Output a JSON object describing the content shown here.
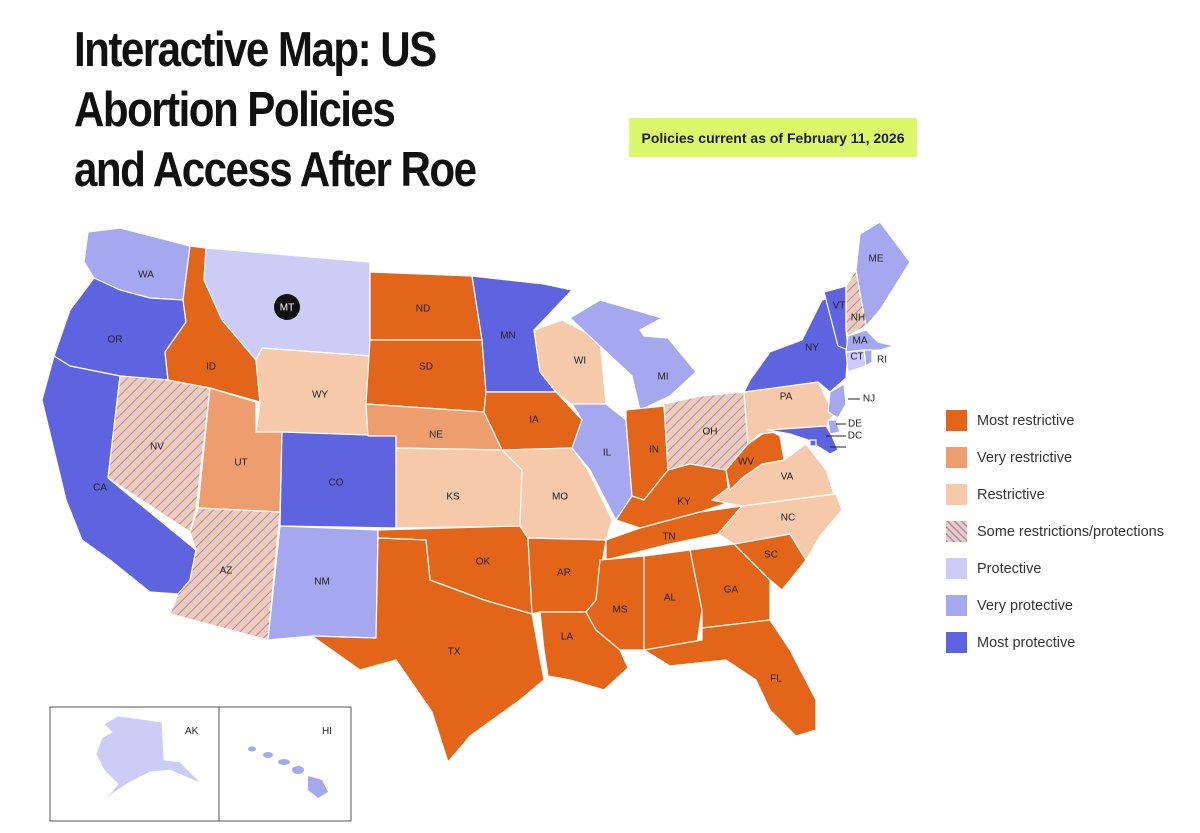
{
  "title": {
    "line1": "Interactive Map: US",
    "line2": "Abortion Policies",
    "line3": "and Access After Roe"
  },
  "date_badge": "Policies current as of February 11, 2026",
  "colors": {
    "most_restrictive": "#e3651a",
    "very_restrictive": "#ee9e6e",
    "restrictive": "#f5c9a9",
    "some_restrictions_protections": "#f4cbb1",
    "hatch_line": "#8f8ee6",
    "protective": "#ccccf7",
    "very_protective": "#a5a8ee",
    "most_protective": "#5e64e0"
  },
  "legend": [
    {
      "key": "most_restrictive",
      "label": "Most restrictive"
    },
    {
      "key": "very_restrictive",
      "label": "Very restrictive"
    },
    {
      "key": "restrictive",
      "label": "Restrictive"
    },
    {
      "key": "some_restrictions_protections",
      "label": "Some restrictions/protections"
    },
    {
      "key": "protective",
      "label": "Protective"
    },
    {
      "key": "very_protective",
      "label": "Very protective"
    },
    {
      "key": "most_protective",
      "label": "Most protective"
    }
  ],
  "states": {
    "WA": {
      "label": "WA",
      "category": "very_protective"
    },
    "OR": {
      "label": "OR",
      "category": "most_protective"
    },
    "CA": {
      "label": "CA",
      "category": "most_protective"
    },
    "NV": {
      "label": "NV",
      "category": "some_restrictions_protections"
    },
    "ID": {
      "label": "ID",
      "category": "most_restrictive"
    },
    "MT": {
      "label": "MT",
      "category": "protective"
    },
    "WY": {
      "label": "WY",
      "category": "restrictive"
    },
    "UT": {
      "label": "UT",
      "category": "very_restrictive"
    },
    "AZ": {
      "label": "AZ",
      "category": "some_restrictions_protections"
    },
    "CO": {
      "label": "CO",
      "category": "most_protective"
    },
    "NM": {
      "label": "NM",
      "category": "very_protective"
    },
    "ND": {
      "label": "ND",
      "category": "most_restrictive"
    },
    "SD": {
      "label": "SD",
      "category": "most_restrictive"
    },
    "NE": {
      "label": "NE",
      "category": "very_restrictive"
    },
    "KS": {
      "label": "KS",
      "category": "restrictive"
    },
    "OK": {
      "label": "OK",
      "category": "most_restrictive"
    },
    "TX": {
      "label": "TX",
      "category": "most_restrictive"
    },
    "MN": {
      "label": "MN",
      "category": "most_protective"
    },
    "IA": {
      "label": "IA",
      "category": "most_restrictive"
    },
    "MO": {
      "label": "MO",
      "category": "restrictive"
    },
    "AR": {
      "label": "AR",
      "category": "most_restrictive"
    },
    "LA": {
      "label": "LA",
      "category": "most_restrictive"
    },
    "WI": {
      "label": "WI",
      "category": "restrictive"
    },
    "IL": {
      "label": "IL",
      "category": "very_protective"
    },
    "MI": {
      "label": "MI",
      "category": "very_protective"
    },
    "IN": {
      "label": "IN",
      "category": "most_restrictive"
    },
    "OH": {
      "label": "OH",
      "category": "some_restrictions_protections"
    },
    "KY": {
      "label": "KY",
      "category": "most_restrictive"
    },
    "TN": {
      "label": "TN",
      "category": "most_restrictive"
    },
    "MS": {
      "label": "MS",
      "category": "most_restrictive"
    },
    "AL": {
      "label": "AL",
      "category": "most_restrictive"
    },
    "GA": {
      "label": "GA",
      "category": "most_restrictive"
    },
    "FL": {
      "label": "FL",
      "category": "most_restrictive"
    },
    "SC": {
      "label": "SC",
      "category": "most_restrictive"
    },
    "NC": {
      "label": "NC",
      "category": "restrictive"
    },
    "VA": {
      "label": "VA",
      "category": "restrictive"
    },
    "WV": {
      "label": "WV",
      "category": "most_restrictive"
    },
    "PA": {
      "label": "PA",
      "category": "restrictive"
    },
    "NY": {
      "label": "NY",
      "category": "most_protective"
    },
    "VT": {
      "label": "VT",
      "category": "most_protective"
    },
    "NH": {
      "label": "NH",
      "category": "some_restrictions_protections"
    },
    "ME": {
      "label": "ME",
      "category": "very_protective"
    },
    "MA": {
      "label": "MA",
      "category": "very_protective"
    },
    "CT": {
      "label": "CT",
      "category": "protective"
    },
    "RI": {
      "label": "RI",
      "category": "very_protective"
    },
    "NJ": {
      "label": "NJ",
      "category": "very_protective"
    },
    "DE": {
      "label": "DE",
      "category": "very_protective"
    },
    "MD": {
      "label": "MD",
      "category": "most_protective"
    },
    "DC": {
      "label": "DC",
      "category": "most_protective"
    },
    "AK": {
      "label": "AK",
      "category": "protective"
    },
    "HI": {
      "label": "HI",
      "category": "very_protective"
    }
  }
}
